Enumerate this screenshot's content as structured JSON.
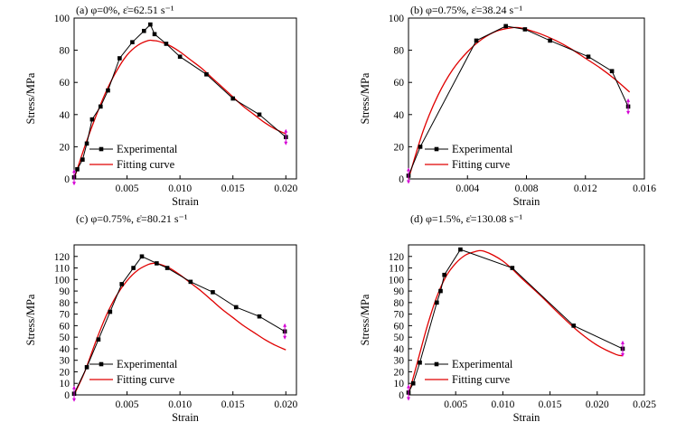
{
  "figure": {
    "colors": {
      "experimental": "#000000",
      "fitting": "#e00000",
      "marker": "#000000",
      "endpoint_arrow": "#d400d4"
    }
  },
  "chart_data": [
    {
      "type": "line",
      "title": "(a) φ=0%, ε̇=62.51 s⁻¹",
      "xlabel": "Strain",
      "ylabel": "Stress/MPa",
      "xlim": [
        0,
        0.021
      ],
      "ylim": [
        0,
        100
      ],
      "xticks": [
        0.005,
        0.01,
        0.015,
        0.02
      ],
      "xtick_labels": [
        "0.005",
        "0.010",
        "0.015",
        "0.020"
      ],
      "yticks": [
        0,
        20,
        40,
        60,
        80,
        100
      ],
      "ytick_labels": [
        "0",
        "20",
        "40",
        "60",
        "80",
        "100"
      ],
      "legend_position": "bottom-left",
      "series": [
        {
          "name": "Experimental",
          "style": "line-marker",
          "x": [
            0,
            0.0003,
            0.0008,
            0.0012,
            0.0017,
            0.0025,
            0.0032,
            0.0043,
            0.0055,
            0.0066,
            0.0072,
            0.0076,
            0.0087,
            0.01,
            0.0125,
            0.015,
            0.0175,
            0.02
          ],
          "y": [
            1,
            6,
            12,
            22,
            37,
            45,
            55,
            75,
            85,
            92,
            96,
            90,
            84,
            76,
            65,
            50,
            40,
            26
          ]
        },
        {
          "name": "Fitting curve",
          "style": "line",
          "x": [
            0,
            0.001,
            0.002,
            0.003,
            0.004,
            0.005,
            0.006,
            0.007,
            0.0075,
            0.008,
            0.009,
            0.01,
            0.011,
            0.012,
            0.013,
            0.014,
            0.015,
            0.016,
            0.017,
            0.018,
            0.019,
            0.02
          ],
          "y": [
            0,
            20,
            38,
            54,
            67,
            77,
            83,
            86,
            86,
            85.5,
            83,
            79,
            74,
            69,
            63,
            57,
            51,
            45,
            40,
            35,
            31,
            28
          ]
        }
      ]
    },
    {
      "type": "line",
      "title": "(b) φ=0.75%, ε̇=38.24 s⁻¹",
      "xlabel": "Strain",
      "ylabel": "Stress/MPa",
      "xlim": [
        0,
        0.016
      ],
      "ylim": [
        0,
        100
      ],
      "xticks": [
        0.004,
        0.008,
        0.012,
        0.016
      ],
      "xtick_labels": [
        "0.004",
        "0.008",
        "0.012",
        "0.016"
      ],
      "yticks": [
        0,
        20,
        40,
        60,
        80,
        100
      ],
      "ytick_labels": [
        "0",
        "20",
        "40",
        "60",
        "80",
        "100"
      ],
      "legend_position": "bottom-left",
      "series": [
        {
          "name": "Experimental",
          "style": "line-marker",
          "x": [
            0,
            0.0008,
            0.0046,
            0.0066,
            0.0079,
            0.0096,
            0.0122,
            0.0138,
            0.0149
          ],
          "y": [
            2,
            20,
            86,
            95,
            93,
            86,
            76,
            67,
            45
          ]
        },
        {
          "name": "Fitting curve",
          "style": "line",
          "x": [
            0,
            0.001,
            0.002,
            0.003,
            0.004,
            0.005,
            0.006,
            0.007,
            0.0075,
            0.008,
            0.009,
            0.01,
            0.011,
            0.012,
            0.013,
            0.014,
            0.015
          ],
          "y": [
            0,
            30,
            52,
            68,
            79,
            87,
            92,
            94,
            94,
            93,
            90,
            86,
            81,
            75,
            69,
            62,
            54
          ]
        }
      ]
    },
    {
      "type": "line",
      "title": "(c) φ=0.75%, ε̇=80.21 s⁻¹",
      "xlabel": "Strain",
      "ylabel": "Stress/MPa",
      "xlim": [
        0,
        0.021
      ],
      "ylim": [
        0,
        130
      ],
      "xticks": [
        0.005,
        0.01,
        0.015,
        0.02
      ],
      "xtick_labels": [
        "0.005",
        "0.010",
        "0.015",
        "0.020"
      ],
      "yticks": [
        0,
        10,
        20,
        30,
        40,
        50,
        60,
        70,
        80,
        90,
        100,
        110,
        120
      ],
      "ytick_labels": [
        "0",
        "10",
        "20",
        "30",
        "40",
        "50",
        "60",
        "70",
        "80",
        "90",
        "100",
        "110",
        "120"
      ],
      "legend_position": "bottom-left",
      "series": [
        {
          "name": "Experimental",
          "style": "line-marker",
          "x": [
            0,
            0.0012,
            0.0023,
            0.0034,
            0.0045,
            0.0056,
            0.0064,
            0.0078,
            0.0088,
            0.011,
            0.0131,
            0.0153,
            0.0175,
            0.0199
          ],
          "y": [
            1,
            24,
            48,
            72,
            96,
            110,
            120,
            114,
            110,
            98,
            89,
            76,
            68,
            55
          ]
        },
        {
          "name": "Fitting curve",
          "style": "line",
          "x": [
            0,
            0.001,
            0.002,
            0.003,
            0.004,
            0.005,
            0.006,
            0.007,
            0.0075,
            0.008,
            0.009,
            0.01,
            0.011,
            0.012,
            0.013,
            0.014,
            0.015,
            0.016,
            0.017,
            0.018,
            0.019,
            0.02
          ],
          "y": [
            0,
            20,
            45,
            68,
            86,
            99,
            108,
            113,
            114,
            113.5,
            110,
            104,
            97,
            90,
            82,
            74,
            67,
            60,
            54,
            48,
            43,
            39
          ]
        }
      ]
    },
    {
      "type": "line",
      "title": "(d) φ=1.5%, ε̇=130.08 s⁻¹",
      "xlabel": "Strain",
      "ylabel": "Stress/MPa",
      "xlim": [
        0,
        0.025
      ],
      "ylim": [
        0,
        130
      ],
      "xticks": [
        0.005,
        0.01,
        0.015,
        0.02,
        0.025
      ],
      "xtick_labels": [
        "0.005",
        "0.010",
        "0.015",
        "0.020",
        "0.025"
      ],
      "yticks": [
        0,
        10,
        20,
        30,
        40,
        50,
        60,
        70,
        80,
        90,
        100,
        110,
        120
      ],
      "ytick_labels": [
        "0",
        "10",
        "20",
        "30",
        "40",
        "50",
        "60",
        "70",
        "80",
        "90",
        "100",
        "110",
        "120"
      ],
      "legend_position": "bottom-left",
      "series": [
        {
          "name": "Experimental",
          "style": "line-marker",
          "x": [
            0,
            0.0005,
            0.0012,
            0.003,
            0.0034,
            0.0038,
            0.0055,
            0.011,
            0.0175,
            0.0227
          ],
          "y": [
            2,
            10,
            28,
            80,
            90,
            104,
            126,
            110,
            60,
            40
          ]
        },
        {
          "name": "Fitting curve",
          "style": "line",
          "x": [
            0,
            0.001,
            0.002,
            0.003,
            0.004,
            0.005,
            0.006,
            0.007,
            0.0075,
            0.008,
            0.009,
            0.01,
            0.011,
            0.012,
            0.014,
            0.016,
            0.018,
            0.02,
            0.022,
            0.0227
          ],
          "y": [
            0,
            30,
            60,
            85,
            103,
            114,
            121,
            124,
            125,
            124.5,
            121,
            116,
            109,
            101,
            86,
            70,
            55,
            43,
            35,
            34
          ]
        }
      ]
    }
  ]
}
